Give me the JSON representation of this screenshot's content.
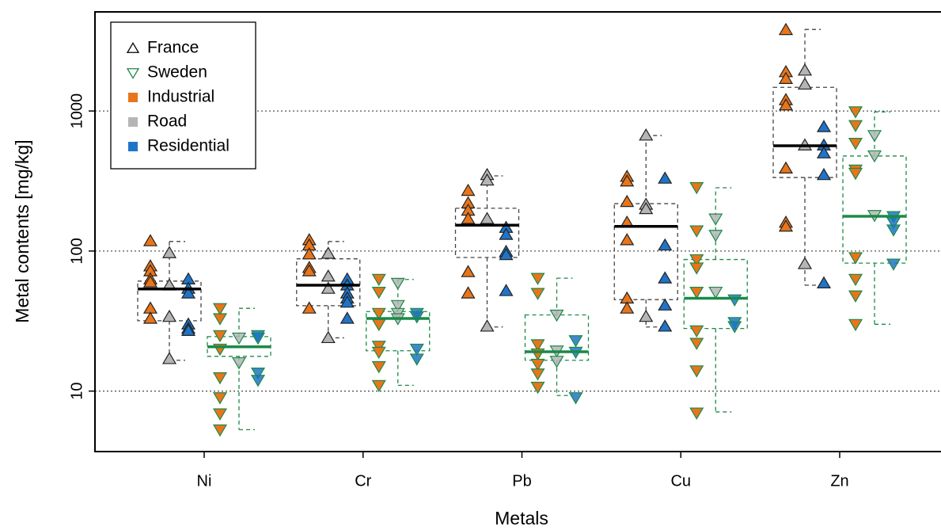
{
  "chart_data": {
    "type": "box",
    "xlabel": "Metals",
    "ylabel": "Metal contents [mg/kg]",
    "categories": [
      "Ni",
      "Cr",
      "Pb",
      "Cu",
      "Zn"
    ],
    "ylim": [
      3.7,
      5100
    ],
    "yticks": [
      10,
      100,
      1000
    ],
    "log_y": true,
    "grid": true,
    "legend_position": "top-left",
    "groups": [
      {
        "name": "France",
        "color": "#000000",
        "marker": "triangle-up",
        "boxes": {
          "whisker_low": [
            16.6,
            24,
            28.7,
            28.7,
            57
          ],
          "q1": [
            31.8,
            40.7,
            90,
            45,
            335
          ],
          "median": [
            53.6,
            57,
            153,
            150,
            564
          ],
          "q3": [
            61,
            88,
            202,
            218,
            1475
          ],
          "whisker_high": [
            117,
            117,
            344,
            668,
            3820
          ]
        },
        "points": [
          [
            [
              118,
              78,
              72,
              63,
              60,
              39,
              33
            ],
            [
              120,
              110,
              95,
              76,
              72,
              39
            ],
            [
              270,
              220,
              195,
              170,
              71,
              50
            ],
            [
              340,
              315,
              225,
              160,
              120,
              46,
              39
            ],
            [
              3800,
              1900,
              1700,
              1200,
              1100,
              390,
              160,
              150
            ]
          ],
          [
            [
              97,
              57,
              34,
              17
            ],
            [
              96,
              66,
              54,
              24
            ],
            [
              350,
              320,
              170,
              29
            ],
            [
              670,
              215,
              200,
              34
            ],
            [
              1950,
              1550,
              570,
              81
            ]
          ],
          [
            [
              63,
              54,
              50,
              30,
              28,
              27
            ],
            [
              63,
              57,
              50,
              46,
              43,
              33
            ],
            [
              147,
              131,
              99,
              94,
              52
            ],
            [
              330,
              110,
              64,
              41,
              29
            ],
            [
              770,
              570,
              500,
              350,
              59
            ]
          ]
        ]
      },
      {
        "name": "Sweden",
        "color": "#1a8a48",
        "marker": "triangle-down",
        "boxes": {
          "whisker_low": [
            5.3,
            11,
            9.3,
            7.1,
            30
          ],
          "q1": [
            17.7,
            19.4,
            16.6,
            28,
            82
          ],
          "median": [
            20.7,
            33,
            19.1,
            46,
            177
          ],
          "q3": [
            24.5,
            37,
            35,
            87,
            477
          ],
          "whisker_high": [
            39,
            62.7,
            64,
            283,
            986
          ]
        },
        "points": [
          [
            [
              39,
              33,
              25,
              20,
              12.5,
              9,
              6.9,
              5.3
            ],
            [
              63,
              51,
              36,
              30,
              21,
              19,
              15,
              11
            ],
            [
              64,
              50,
              21.5,
              18.5,
              15.6,
              13.3,
              10.7
            ],
            [
              285,
              140,
              87,
              76,
              51,
              27,
              22,
              14,
              7
            ],
            [
              990,
              790,
              590,
              380,
              360,
              90,
              63,
              48,
              30
            ]
          ],
          [
            [
              24,
              16
            ],
            [
              59,
              41,
              36,
              33
            ],
            [
              35,
              19.4,
              16.4
            ],
            [
              170,
              130,
              51
            ],
            [
              670,
              480,
              180
            ]
          ],
          [
            [
              25,
              24,
              13.5,
              12
            ],
            [
              36,
              34,
              20,
              17
            ],
            [
              23,
              19,
              9
            ],
            [
              45,
              31,
              29
            ],
            [
              177,
              160,
              142,
              81
            ]
          ]
        ]
      }
    ],
    "land_uses": [
      {
        "name": "Industrial",
        "color": "#e8751a"
      },
      {
        "name": "Road",
        "color": "#b5b5b5"
      },
      {
        "name": "Residential",
        "color": "#1f74c8"
      }
    ]
  }
}
